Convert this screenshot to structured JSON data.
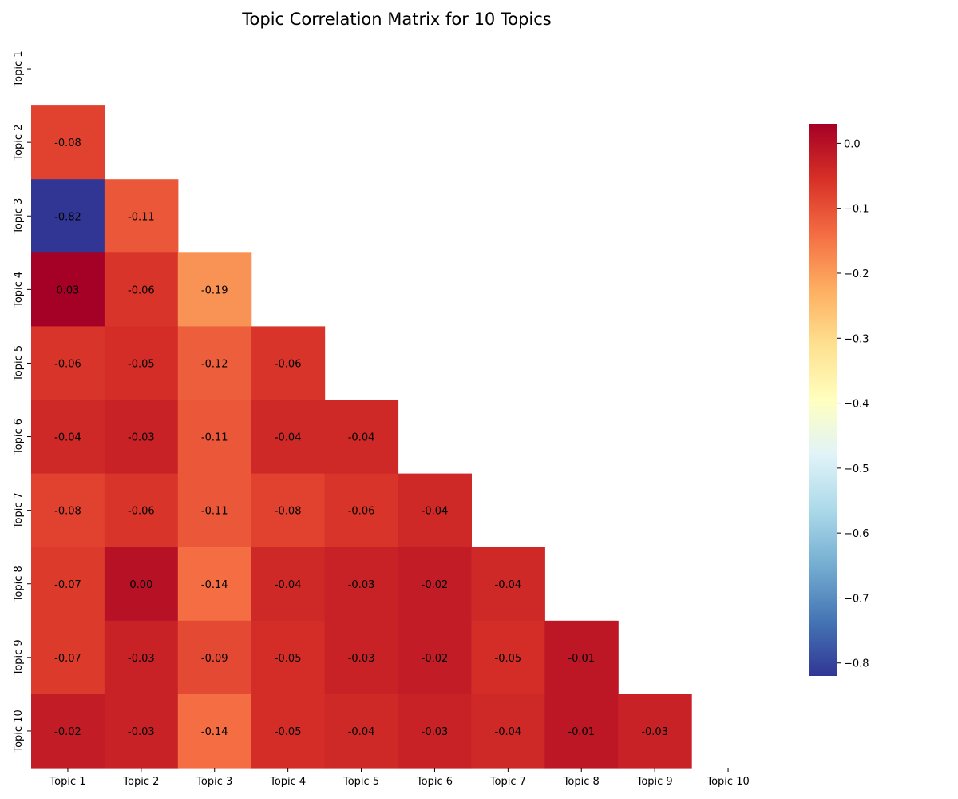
{
  "chart_data": {
    "type": "heatmap",
    "title": "Topic Correlation Matrix for 10 Topics",
    "rows": [
      "Topic 1",
      "Topic 2",
      "Topic 3",
      "Topic 4",
      "Topic 5",
      "Topic 6",
      "Topic 7",
      "Topic 8",
      "Topic 9",
      "Topic 10"
    ],
    "columns": [
      "Topic 1",
      "Topic 2",
      "Topic 3",
      "Topic 4",
      "Topic 5",
      "Topic 6",
      "Topic 7",
      "Topic 8",
      "Topic 9",
      "Topic 10"
    ],
    "mask": "upper-triangle-and-diagonal",
    "values": [
      [],
      [
        -0.08
      ],
      [
        -0.82,
        -0.11
      ],
      [
        0.03,
        -0.06,
        -0.19
      ],
      [
        -0.06,
        -0.05,
        -0.12,
        -0.06
      ],
      [
        -0.04,
        -0.03,
        -0.11,
        -0.04,
        -0.04
      ],
      [
        -0.08,
        -0.06,
        -0.11,
        -0.08,
        -0.06,
        -0.04
      ],
      [
        -0.07,
        0.0,
        -0.14,
        -0.04,
        -0.03,
        -0.02,
        -0.04
      ],
      [
        -0.07,
        -0.03,
        -0.09,
        -0.05,
        -0.03,
        -0.02,
        -0.05,
        -0.01
      ],
      [
        -0.02,
        -0.03,
        -0.14,
        -0.05,
        -0.04,
        -0.03,
        -0.04,
        -0.01,
        -0.03
      ]
    ],
    "value_format": "2 decimals",
    "colormap": "RdYlBu_r",
    "colorbar": {
      "range": [
        -0.82,
        0.03
      ],
      "ticks": [
        0.0,
        -0.1,
        -0.2,
        -0.3,
        -0.4,
        -0.5,
        -0.6,
        -0.7,
        -0.8
      ],
      "tick_labels": [
        "0.0",
        "−0.1",
        "−0.2",
        "−0.3",
        "−0.4",
        "−0.5",
        "−0.6",
        "−0.7",
        "−0.8"
      ],
      "placement": "right"
    }
  }
}
